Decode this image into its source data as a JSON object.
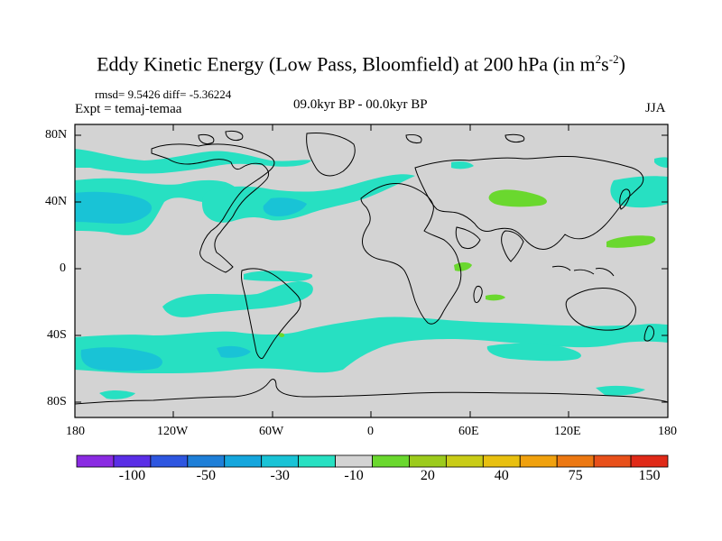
{
  "title": {
    "text": "Eddy Kinetic Energy (Low Pass, Bloomfield) at 200 hPa (in m",
    "sup1": "2",
    "mid": "s",
    "sup2": "-2",
    "end": ")"
  },
  "stats": "rmsd= 9.5426 diff= -5.36224",
  "experiment": "Expt = temaj-temaa",
  "period": "09.0kyr BP - 00.0kyr BP",
  "season": "JJA",
  "lat_labels": [
    "80N",
    "40N",
    "0",
    "40S",
    "80S"
  ],
  "lon_labels": [
    "180",
    "120W",
    "60W",
    "0",
    "60E",
    "120E",
    "180"
  ],
  "colorbar": {
    "colors": [
      "#8a2be2",
      "#5a2ee6",
      "#2e56e0",
      "#1e7fd8",
      "#15a6dd",
      "#19c3d6",
      "#27e0c2",
      "#d3d3d3",
      "#6ad82e",
      "#9ccb1c",
      "#c9cc17",
      "#e8c010",
      "#f0a10e",
      "#ec7812",
      "#e8501a",
      "#e02a18"
    ],
    "labels": [
      "-100",
      "-50",
      "-30",
      "-10",
      "20",
      "40",
      "75",
      "150"
    ],
    "label_slots": [
      1,
      3,
      5,
      7,
      9,
      11,
      13,
      15
    ]
  },
  "map_colors": {
    "ocean_land": "#d3d3d3",
    "neg_low": "#27e0c2",
    "neg_mid": "#19c3d6",
    "pos_low": "#6ad82e",
    "coast": "#000000"
  }
}
